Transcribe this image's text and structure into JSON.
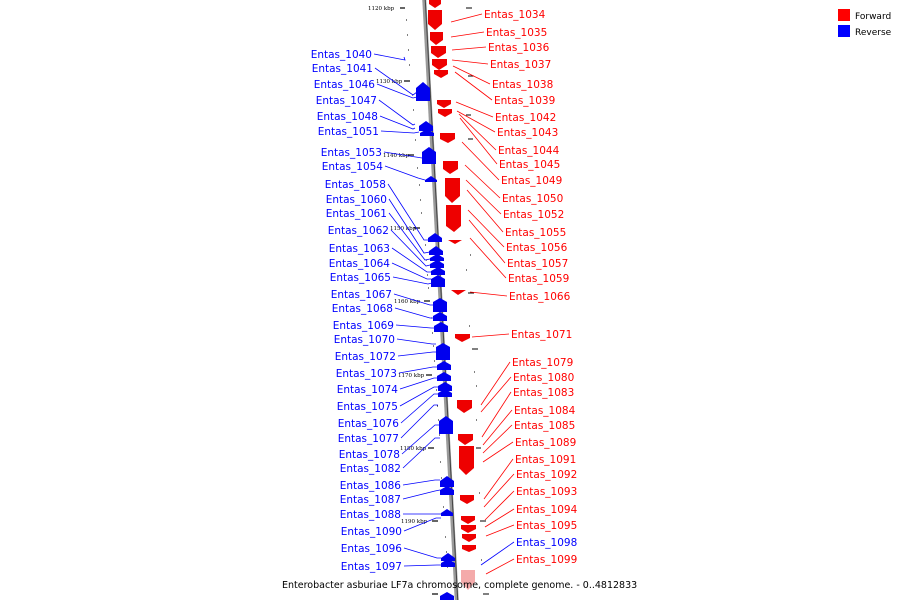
{
  "caption": "Enterobacter asburiae LF7a chromosome, complete genome. - 0..4812833",
  "legend": {
    "forward_label": "Forward",
    "reverse_label": "Reverse",
    "forward_color": "#ff0000",
    "reverse_color": "#0000ff"
  },
  "scale_ticks": [
    "1120 kbp",
    "1130 kbp",
    "1140 kbp",
    "1150 kbp",
    "1160 kbp",
    "1170 kbp",
    "1180 kbp",
    "1190 kbp"
  ],
  "forward_genes": [
    "Entas_1034",
    "Entas_1035",
    "Entas_1036",
    "Entas_1037",
    "Entas_1038",
    "Entas_1039",
    "Entas_1042",
    "Entas_1043",
    "Entas_1044",
    "Entas_1045",
    "Entas_1049",
    "Entas_1050",
    "Entas_1052",
    "Entas_1055",
    "Entas_1056",
    "Entas_1057",
    "Entas_1059",
    "Entas_1066",
    "Entas_1071",
    "Entas_1079",
    "Entas_1080",
    "Entas_1083",
    "Entas_1084",
    "Entas_1085",
    "Entas_1089",
    "Entas_1091",
    "Entas_1092",
    "Entas_1093",
    "Entas_1094",
    "Entas_1095",
    "Entas_1099"
  ],
  "reverse_genes": [
    "Entas_1040",
    "Entas_1041",
    "Entas_1046",
    "Entas_1047",
    "Entas_1048",
    "Entas_1051",
    "Entas_1053",
    "Entas_1054",
    "Entas_1058",
    "Entas_1060",
    "Entas_1061",
    "Entas_1062",
    "Entas_1063",
    "Entas_1064",
    "Entas_1065",
    "Entas_1067",
    "Entas_1068",
    "Entas_1069",
    "Entas_1070",
    "Entas_1072",
    "Entas_1073",
    "Entas_1074",
    "Entas_1075",
    "Entas_1076",
    "Entas_1077",
    "Entas_1078",
    "Entas_1082",
    "Entas_1086",
    "Entas_1087",
    "Entas_1088",
    "Entas_1090",
    "Entas_1096",
    "Entas_1097",
    "Entas_1098"
  ]
}
